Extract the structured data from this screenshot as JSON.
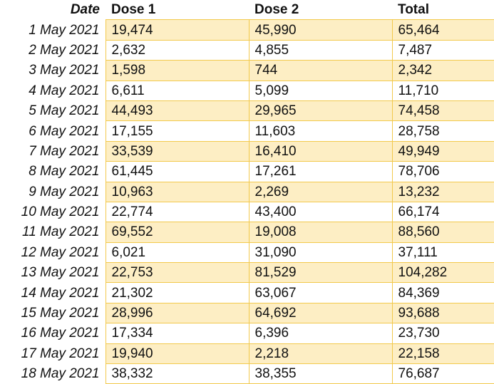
{
  "table": {
    "headers": {
      "date": "Date",
      "dose1": "Dose 1",
      "dose2": "Dose 2",
      "total": "Total"
    },
    "rows": [
      {
        "date": "1 May 2021",
        "dose1": "19,474",
        "dose2": "45,990",
        "total": "65,464"
      },
      {
        "date": "2 May 2021",
        "dose1": "2,632",
        "dose2": "4,855",
        "total": "7,487"
      },
      {
        "date": "3 May 2021",
        "dose1": "1,598",
        "dose2": "744",
        "total": "2,342"
      },
      {
        "date": "4 May 2021",
        "dose1": "6,611",
        "dose2": "5,099",
        "total": "11,710"
      },
      {
        "date": "5 May 2021",
        "dose1": "44,493",
        "dose2": "29,965",
        "total": "74,458"
      },
      {
        "date": "6 May 2021",
        "dose1": "17,155",
        "dose2": "11,603",
        "total": "28,758"
      },
      {
        "date": "7 May 2021",
        "dose1": "33,539",
        "dose2": "16,410",
        "total": "49,949"
      },
      {
        "date": "8 May 2021",
        "dose1": "61,445",
        "dose2": "17,261",
        "total": "78,706"
      },
      {
        "date": "9 May 2021",
        "dose1": "10,963",
        "dose2": "2,269",
        "total": "13,232"
      },
      {
        "date": "10 May 2021",
        "dose1": "22,774",
        "dose2": "43,400",
        "total": "66,174"
      },
      {
        "date": "11 May 2021",
        "dose1": "69,552",
        "dose2": "19,008",
        "total": "88,560"
      },
      {
        "date": "12 May 2021",
        "dose1": "6,021",
        "dose2": "31,090",
        "total": "37,111"
      },
      {
        "date": "13 May 2021",
        "dose1": "22,753",
        "dose2": "81,529",
        "total": "104,282"
      },
      {
        "date": "14 May 2021",
        "dose1": "21,302",
        "dose2": "63,067",
        "total": "84,369"
      },
      {
        "date": "15 May 2021",
        "dose1": "28,996",
        "dose2": "64,692",
        "total": "93,688"
      },
      {
        "date": "16 May 2021",
        "dose1": "17,334",
        "dose2": "6,396",
        "total": "23,730"
      },
      {
        "date": "17 May 2021",
        "dose1": "19,940",
        "dose2": "2,218",
        "total": "22,158"
      },
      {
        "date": "18 May 2021",
        "dose1": "38,332",
        "dose2": "38,355",
        "total": "76,687"
      }
    ]
  },
  "colors": {
    "band_fill": "#fdeec4",
    "grid_line": "#f2c94c"
  }
}
